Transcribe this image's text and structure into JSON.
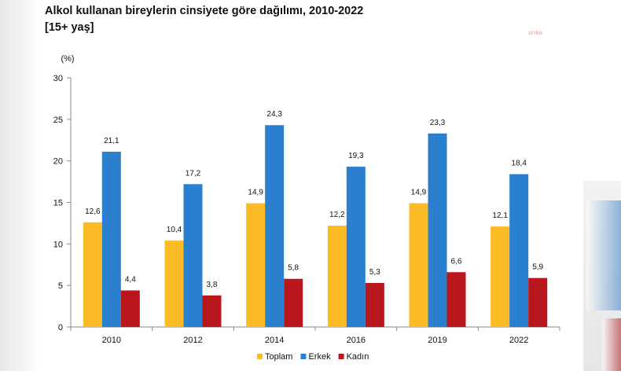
{
  "title": "Alkol kullanan bireylerin cinsiyete göre dağılımı, 2010-2022",
  "subtitle": "[15+ yaş]",
  "watermark": "anka",
  "chart_data": {
    "type": "bar",
    "title": "Alkol kullanan bireylerin cinsiyete göre dağılımı, 2010-2022",
    "subtitle": "[15+ yaş]",
    "unit_label": "(%)",
    "categories": [
      "2010",
      "2012",
      "2014",
      "2016",
      "2019",
      "2022"
    ],
    "series": [
      {
        "name": "Toplam",
        "color": "#fbbb25",
        "values": [
          12.6,
          10.4,
          14.9,
          12.2,
          14.9,
          12.1
        ],
        "labels": [
          "12,6",
          "10,4",
          "14,9",
          "12,2",
          "14,9",
          "12,1"
        ]
      },
      {
        "name": "Erkek",
        "color": "#2a7fcf",
        "values": [
          21.1,
          17.2,
          24.3,
          19.3,
          23.3,
          18.4
        ],
        "labels": [
          "21,1",
          "17,2",
          "24,3",
          "19,3",
          "23,3",
          "18,4"
        ]
      },
      {
        "name": "Kadın",
        "color": "#b8171d",
        "values": [
          4.4,
          3.8,
          5.8,
          5.3,
          6.6,
          5.9
        ],
        "labels": [
          "4,4",
          "3,8",
          "5,8",
          "5,3",
          "6,6",
          "5,9"
        ]
      }
    ],
    "y_ticks": [
      "0",
      "5",
      "10",
      "15",
      "20",
      "25",
      "30"
    ],
    "ylim": [
      0,
      30
    ],
    "grid": false,
    "legend_position": "bottom"
  }
}
